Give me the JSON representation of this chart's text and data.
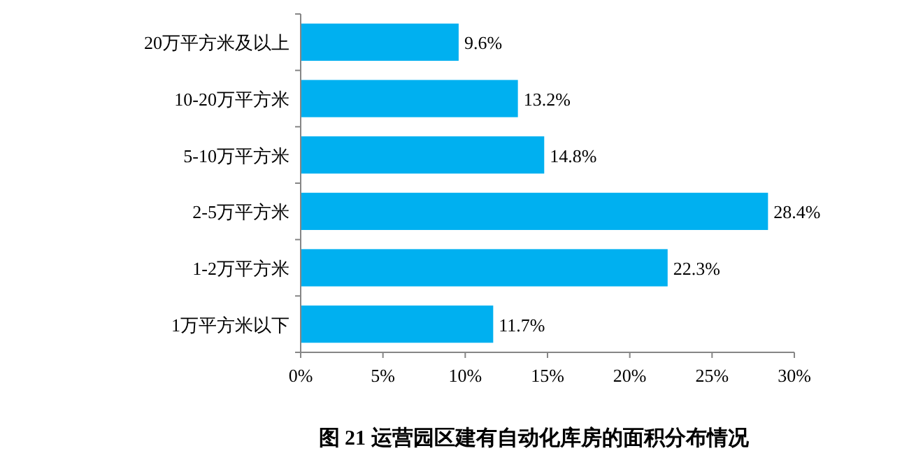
{
  "chart_data": {
    "type": "bar",
    "orientation": "horizontal",
    "title": "图 21 运营园区建有自动化库房的面积分布情况",
    "categories": [
      "20万平方米及以上",
      "10-20万平方米",
      "5-10万平方米",
      "2-5万平方米",
      "1-2万平方米",
      "1万平方米以下"
    ],
    "values": [
      9.6,
      13.2,
      14.8,
      28.4,
      22.3,
      11.7
    ],
    "value_labels": [
      "9.6%",
      "13.2%",
      "14.8%",
      "28.4%",
      "22.3%",
      "11.7%"
    ],
    "color": "#00b0f0",
    "xlim": [
      0,
      30
    ],
    "xticks": [
      {
        "value": 0,
        "label": "0%"
      },
      {
        "value": 5,
        "label": "5%"
      },
      {
        "value": 10,
        "label": "10%"
      },
      {
        "value": 15,
        "label": "15%"
      },
      {
        "value": 20,
        "label": "20%"
      },
      {
        "value": 25,
        "label": "25%"
      },
      {
        "value": 30,
        "label": "30%"
      }
    ],
    "grid": false
  }
}
